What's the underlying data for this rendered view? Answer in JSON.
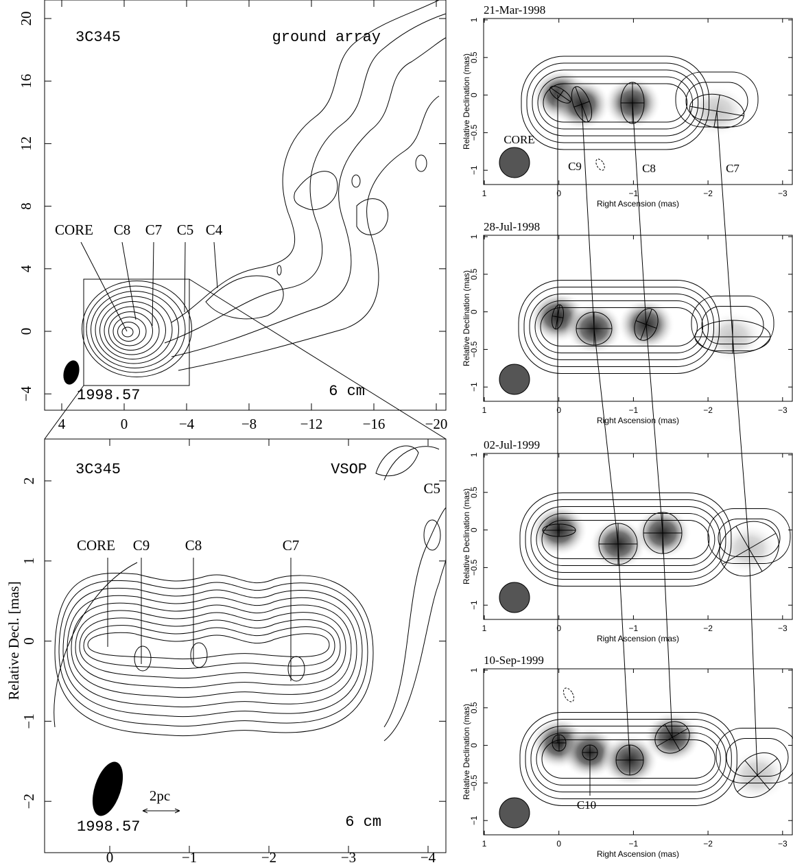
{
  "left_top": {
    "source": "3C345",
    "array": "ground array",
    "components": [
      "CORE",
      "C8",
      "C7",
      "C5",
      "C4"
    ],
    "epoch": "1998.57",
    "wavelength": "6 cm",
    "xticks": [
      "4",
      "0",
      "−4",
      "−8",
      "−12",
      "−16",
      "−20"
    ],
    "yticks": [
      "20",
      "16",
      "12",
      "8",
      "4",
      "0",
      "−4"
    ]
  },
  "left_bottom": {
    "source": "3C345",
    "array": "VSOP",
    "edge_component": "C5",
    "components": [
      "CORE",
      "C9",
      "C8",
      "C7"
    ],
    "epoch": "1998.57",
    "scale": "2pc",
    "wavelength": "6 cm",
    "ylabel": "Relative Decl. [mas]",
    "xticks": [
      "0",
      "−1",
      "−2",
      "−3",
      "−4"
    ],
    "yticks": [
      "2",
      "1",
      "0",
      "−1",
      "−2"
    ]
  },
  "right_panels": [
    {
      "date": "21-Mar-1998",
      "xlabel": "Right Ascension  (mas)",
      "ylabel": "Relative Declination  (mas)",
      "xticks": [
        "1",
        "0",
        "−1",
        "−2",
        "−3"
      ],
      "yticks": [
        "1",
        "0.5",
        "0",
        "−0.5",
        "−1"
      ],
      "components": [
        "CORE",
        "C9",
        "C8",
        "C7"
      ]
    },
    {
      "date": "28-Jul-1998",
      "xlabel": "Right Ascension  (mas)",
      "ylabel": "Relative Declination  (mas)",
      "xticks": [
        "1",
        "0",
        "−1",
        "−2",
        "−3"
      ],
      "yticks": [
        "1",
        "0.5",
        "0",
        "−0.5",
        "−1"
      ]
    },
    {
      "date": "02-Jul-1999",
      "xlabel": "Right Ascension  (mas)",
      "ylabel": "Relative Declination  (mas)",
      "xticks": [
        "1",
        "0",
        "−1",
        "−2",
        "−3"
      ],
      "yticks": [
        "1",
        "0.5",
        "0",
        "−0.5",
        "−1"
      ]
    },
    {
      "date": "10-Sep-1999",
      "xlabel": "Right Ascension  (mas)",
      "ylabel": "Relative Declination  (mas)",
      "xticks": [
        "1",
        "0",
        "−1",
        "−2",
        "−3"
      ],
      "yticks": [
        "1",
        "0.5",
        "0",
        "−0.5",
        "−1"
      ],
      "components": [
        "C10"
      ]
    }
  ]
}
